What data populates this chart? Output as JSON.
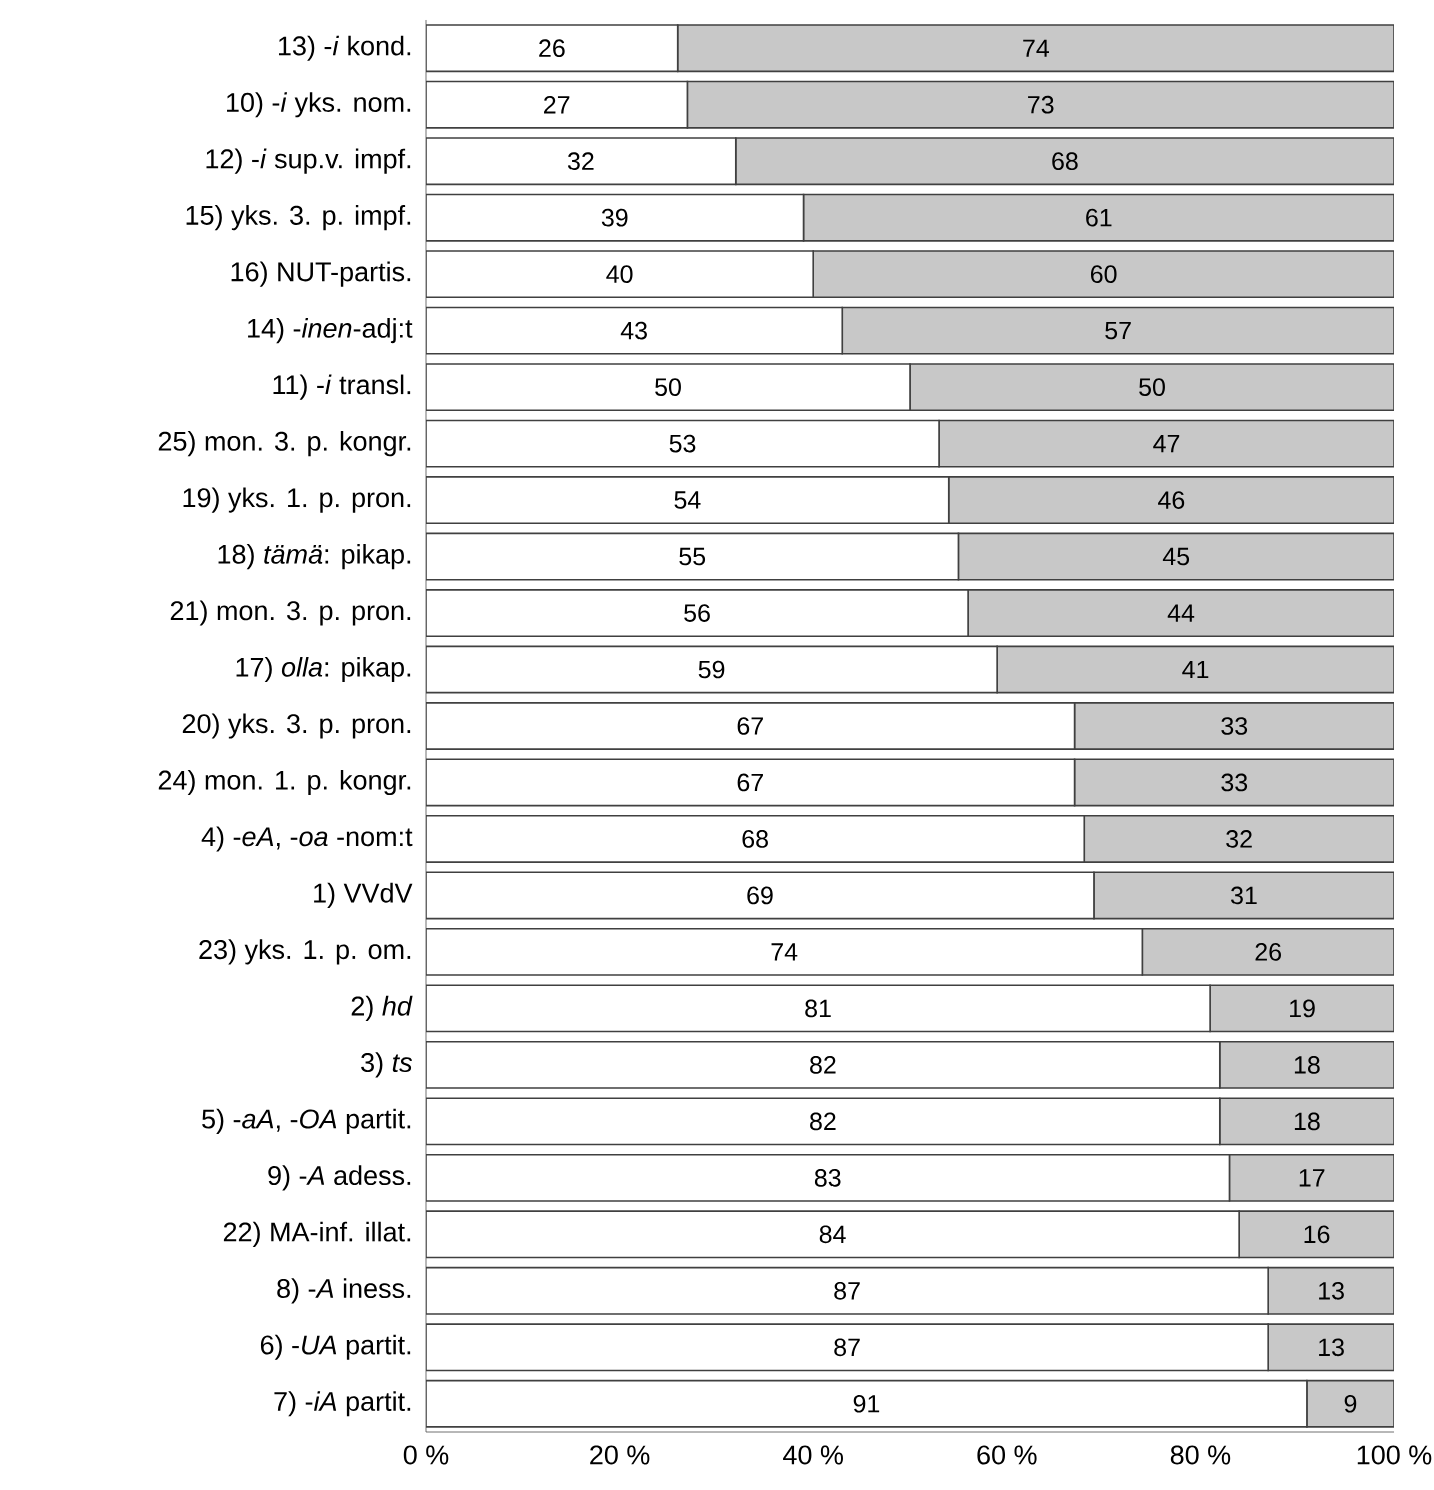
{
  "chart_data": {
    "type": "bar",
    "orientation": "horizontal",
    "stacked": true,
    "data_labels": true,
    "categories": [
      "13) -*i* kond.",
      "10) -*i* yks. nom.",
      "12) -*i* sup.v. impf.",
      "15) yks. 3. p. impf.",
      "16) NUT-partis.",
      "14) -*inen*-adj:t",
      "11) -*i* transl.",
      "25) mon. 3. p. kongr.",
      "19) yks. 1. p. pron.",
      "18) *tämä*: pikap.",
      "21) mon. 3. p. pron.",
      "17) *olla*: pikap.",
      "20) yks. 3. p. pron.",
      "24) mon. 1. p. kongr.",
      "4) -*eA*, -*oa* -nom:t",
      "1) VVdV",
      "23) yks. 1. p. om.",
      "2) *hd*",
      "3) *ts*",
      "5) -*aA*, -*OA* partit.",
      "9) -*A* adess.",
      "22) MA-inf. illat.",
      "8) -*A* iness.",
      "6) -*UA* partit.",
      "7) -*iA* partit."
    ],
    "series": [
      {
        "color": "#ffffff",
        "values": [
          26,
          27,
          32,
          39,
          40,
          43,
          50,
          53,
          54,
          55,
          56,
          59,
          67,
          67,
          68,
          69,
          74,
          81,
          82,
          82,
          83,
          84,
          87,
          87,
          91
        ]
      },
      {
        "color": "#c8c8c8",
        "values": [
          74,
          73,
          68,
          61,
          60,
          57,
          50,
          47,
          46,
          45,
          44,
          41,
          33,
          33,
          32,
          31,
          26,
          19,
          18,
          18,
          17,
          16,
          13,
          13,
          9
        ]
      }
    ],
    "xlim": [
      0,
      100
    ],
    "xticks": [
      {
        "value": 0,
        "label": "0 %"
      },
      {
        "value": 20,
        "label": "20 %"
      },
      {
        "value": 40,
        "label": "40 %"
      },
      {
        "value": 60,
        "label": "60 %"
      },
      {
        "value": 80,
        "label": "80 %"
      },
      {
        "value": 100,
        "label": "100 %"
      }
    ],
    "grid": false
  }
}
